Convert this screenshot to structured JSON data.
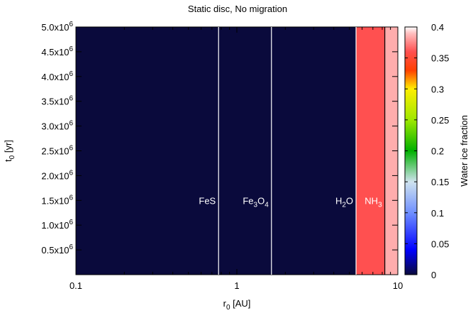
{
  "chart_data": {
    "type": "heatmap",
    "title": "Static disc, No migration",
    "xlabel": {
      "main": "r",
      "sub": "0",
      "unit": " [AU]"
    },
    "ylabel": {
      "main": "t",
      "sub": "0",
      "unit": " [yr]"
    },
    "x_scale": "log",
    "xlim": [
      0.1,
      10
    ],
    "ylim": [
      0,
      5000000
    ],
    "x_ticks": [
      {
        "value": 0.1,
        "label": "0.1"
      },
      {
        "value": 1,
        "label": "1"
      },
      {
        "value": 10,
        "label": "10"
      }
    ],
    "y_ticks": [
      {
        "value": 500000,
        "mantissa": "0.5x10",
        "exp": "6"
      },
      {
        "value": 1000000,
        "mantissa": "1.0x10",
        "exp": "6"
      },
      {
        "value": 1500000,
        "mantissa": "1.5x10",
        "exp": "6"
      },
      {
        "value": 2000000,
        "mantissa": "2.0x10",
        "exp": "6"
      },
      {
        "value": 2500000,
        "mantissa": "2.5x10",
        "exp": "6"
      },
      {
        "value": 3000000,
        "mantissa": "3.0x10",
        "exp": "6"
      },
      {
        "value": 3500000,
        "mantissa": "3.5x10",
        "exp": "6"
      },
      {
        "value": 4000000,
        "mantissa": "4.0x10",
        "exp": "6"
      },
      {
        "value": 4500000,
        "mantissa": "4.5x10",
        "exp": "6"
      },
      {
        "value": 5000000,
        "mantissa": "5.0x10",
        "exp": "6"
      }
    ],
    "regions": [
      {
        "r_start": 0.1,
        "r_end": 5.5,
        "value": 0.0
      },
      {
        "r_start": 5.5,
        "r_end": 8.3,
        "value": 0.36
      },
      {
        "r_start": 8.3,
        "r_end": 10,
        "value": 0.385
      }
    ],
    "snow_lines": [
      {
        "r": 0.77,
        "label": {
          "parts": [
            {
              "text": "FeS"
            }
          ]
        },
        "line_color": "#ffffff",
        "label_side": "left"
      },
      {
        "r": 1.64,
        "label": {
          "parts": [
            {
              "text": "Fe"
            },
            {
              "text": "3",
              "sub": true
            },
            {
              "text": "O"
            },
            {
              "text": "4",
              "sub": true
            }
          ]
        },
        "line_color": "#ffffff",
        "label_side": "left"
      },
      {
        "r": 5.5,
        "label": {
          "parts": [
            {
              "text": "H"
            },
            {
              "text": "2",
              "sub": true
            },
            {
              "text": "O"
            }
          ]
        },
        "line_color": "#ffffff",
        "label_side": "left"
      },
      {
        "r": 8.3,
        "label": {
          "parts": [
            {
              "text": "NH"
            },
            {
              "text": "3",
              "sub": true
            }
          ]
        },
        "line_color": "#000000",
        "label_side": "left"
      }
    ],
    "snow_label_t": 1500000,
    "colorbar": {
      "label": "Water ice fraction",
      "range": [
        0,
        0.4
      ],
      "ticks": [
        {
          "value": 0,
          "label": "0"
        },
        {
          "value": 0.05,
          "label": "0.05"
        },
        {
          "value": 0.1,
          "label": "0.1"
        },
        {
          "value": 0.15,
          "label": "0.15"
        },
        {
          "value": 0.2,
          "label": "0.2"
        },
        {
          "value": 0.25,
          "label": "0.25"
        },
        {
          "value": 0.3,
          "label": "0.3"
        },
        {
          "value": 0.35,
          "label": "0.35"
        },
        {
          "value": 0.4,
          "label": "0.4"
        }
      ],
      "stops": [
        {
          "value": 0.0,
          "color": "#0a0a3c"
        },
        {
          "value": 0.04,
          "color": "#0000ff"
        },
        {
          "value": 0.1,
          "color": "#6f8fff"
        },
        {
          "value": 0.15,
          "color": "#cfe3ee"
        },
        {
          "value": 0.2,
          "color": "#00b000"
        },
        {
          "value": 0.25,
          "color": "#9fe800"
        },
        {
          "value": 0.3,
          "color": "#ffee00"
        },
        {
          "value": 0.33,
          "color": "#ff4000"
        },
        {
          "value": 0.36,
          "color": "#ff5050"
        },
        {
          "value": 0.39,
          "color": "#ffc0c0"
        },
        {
          "value": 0.4,
          "color": "#ffffff"
        }
      ]
    }
  }
}
